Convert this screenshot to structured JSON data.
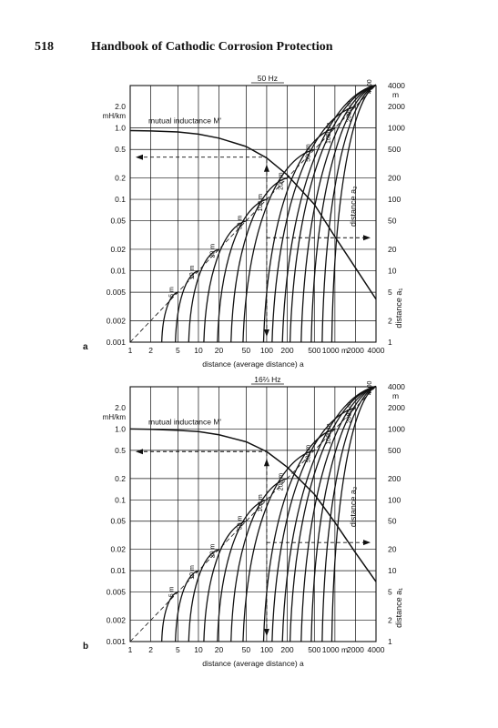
{
  "header": {
    "page_number": "518",
    "book_title": "Handbook of Cathodic Corrosion Protection"
  },
  "chart_data": [
    {
      "type": "line",
      "panel_label": "a",
      "frequency_label": "50 Hz",
      "xlabel": "distance (average distance) a",
      "y_unit": "mH/km",
      "curve_label": "mutual inductance M'",
      "right_axis_label": "distance a₁",
      "right_axis_unit": "m",
      "curve_family_axis_label": "distance a₂",
      "x_scale": "log",
      "y_scale": "log",
      "xlim": [
        1,
        4000
      ],
      "ylim": [
        0.001,
        2.0
      ],
      "x_ticks": [
        {
          "value": 1,
          "label": "1"
        },
        {
          "value": 2,
          "label": "2"
        },
        {
          "value": 5,
          "label": "5"
        },
        {
          "value": 10,
          "label": "10"
        },
        {
          "value": 20,
          "label": "20"
        },
        {
          "value": 50,
          "label": "50"
        },
        {
          "value": 100,
          "label": "100"
        },
        {
          "value": 200,
          "label": "200"
        },
        {
          "value": 500,
          "label": "500"
        },
        {
          "value": 1000,
          "label": "1000 m"
        },
        {
          "value": 2000,
          "label": "2000"
        },
        {
          "value": 4000,
          "label": "4000"
        }
      ],
      "y_ticks": [
        {
          "value": 2.0,
          "label": "2.0"
        },
        {
          "value": 1.0,
          "label": "1.0"
        },
        {
          "value": 0.5,
          "label": "0.5"
        },
        {
          "value": 0.2,
          "label": "0.2"
        },
        {
          "value": 0.1,
          "label": "0.1"
        },
        {
          "value": 0.05,
          "label": "0.05"
        },
        {
          "value": 0.02,
          "label": "0.02"
        },
        {
          "value": 0.01,
          "label": "0.01"
        },
        {
          "value": 0.005,
          "label": "0.005"
        },
        {
          "value": 0.002,
          "label": "0.002"
        },
        {
          "value": 0.001,
          "label": "0.001"
        }
      ],
      "right_ticks": [
        {
          "value": 1.0,
          "label": "1000"
        },
        {
          "value": 0.5,
          "label": "500"
        },
        {
          "value": 0.2,
          "label": "200"
        },
        {
          "value": 0.1,
          "label": "100"
        },
        {
          "value": 0.05,
          "label": "50"
        },
        {
          "value": 0.02,
          "label": "20"
        },
        {
          "value": 0.01,
          "label": "10"
        },
        {
          "value": 0.005,
          "label": "5"
        },
        {
          "value": 0.002,
          "label": "2"
        },
        {
          "value": 0.001,
          "label": "1"
        }
      ],
      "extra_right_labels": [
        {
          "value": 2.0,
          "label": "2000"
        },
        {
          "value": 4.0,
          "label": "4000"
        }
      ],
      "mutual_inductance_curve": [
        {
          "x": 1,
          "y": 0.92
        },
        {
          "x": 2,
          "y": 0.91
        },
        {
          "x": 5,
          "y": 0.88
        },
        {
          "x": 10,
          "y": 0.82
        },
        {
          "x": 20,
          "y": 0.72
        },
        {
          "x": 50,
          "y": 0.55
        },
        {
          "x": 100,
          "y": 0.38
        },
        {
          "x": 200,
          "y": 0.22
        },
        {
          "x": 500,
          "y": 0.085
        },
        {
          "x": 1000,
          "y": 0.03
        },
        {
          "x": 2000,
          "y": 0.011
        },
        {
          "x": 4000,
          "y": 0.004
        }
      ],
      "a2_labels": [
        "5 m",
        "10 m",
        "20 m",
        "50 m",
        "100 m",
        "200 m",
        "500 m",
        "1000 m",
        "2000 m",
        "4000"
      ],
      "a2_values": [
        5,
        10,
        20,
        50,
        100,
        200,
        500,
        1000,
        2000,
        4000
      ],
      "a1_curve_starts": [
        2.9,
        4.6,
        7.2,
        12,
        19,
        30,
        45,
        90,
        120,
        170,
        220,
        320,
        450,
        650,
        900
      ],
      "example": {
        "x": 100,
        "y1": 0.029,
        "y2": 0.39
      }
    },
    {
      "type": "line",
      "panel_label": "b",
      "frequency_label": "16⅔ Hz",
      "xlabel": "distance (average distance) a",
      "y_unit": "mH/km",
      "curve_label": "mutual inductance M'",
      "right_axis_label": "distance a₁",
      "right_axis_unit": "m",
      "curve_family_axis_label": "distance a₂",
      "x_scale": "log",
      "y_scale": "log",
      "xlim": [
        1,
        4000
      ],
      "ylim": [
        0.001,
        2.0
      ],
      "x_ticks": [
        {
          "value": 1,
          "label": "1"
        },
        {
          "value": 2,
          "label": "2"
        },
        {
          "value": 5,
          "label": "5"
        },
        {
          "value": 10,
          "label": "10"
        },
        {
          "value": 20,
          "label": "20"
        },
        {
          "value": 50,
          "label": "50"
        },
        {
          "value": 100,
          "label": "100"
        },
        {
          "value": 200,
          "label": "200"
        },
        {
          "value": 500,
          "label": "500"
        },
        {
          "value": 1000,
          "label": "1000 m"
        },
        {
          "value": 2000,
          "label": "2000"
        },
        {
          "value": 4000,
          "label": "4000"
        }
      ],
      "y_ticks": [
        {
          "value": 2.0,
          "label": "2.0"
        },
        {
          "value": 1.0,
          "label": "1.0"
        },
        {
          "value": 0.5,
          "label": "0.5"
        },
        {
          "value": 0.2,
          "label": "0.2"
        },
        {
          "value": 0.1,
          "label": "0.1"
        },
        {
          "value": 0.05,
          "label": "0.05"
        },
        {
          "value": 0.02,
          "label": "0.02"
        },
        {
          "value": 0.01,
          "label": "0.01"
        },
        {
          "value": 0.005,
          "label": "0.005"
        },
        {
          "value": 0.002,
          "label": "0.002"
        },
        {
          "value": 0.001,
          "label": "0.001"
        }
      ],
      "right_ticks": [
        {
          "value": 1.0,
          "label": "1000"
        },
        {
          "value": 0.5,
          "label": "500"
        },
        {
          "value": 0.2,
          "label": "200"
        },
        {
          "value": 0.1,
          "label": "100"
        },
        {
          "value": 0.05,
          "label": "50"
        },
        {
          "value": 0.02,
          "label": "20"
        },
        {
          "value": 0.01,
          "label": "10"
        },
        {
          "value": 0.005,
          "label": "5"
        },
        {
          "value": 0.002,
          "label": "2"
        },
        {
          "value": 0.001,
          "label": "1"
        }
      ],
      "extra_right_labels": [
        {
          "value": 2.0,
          "label": "2000"
        },
        {
          "value": 4.0,
          "label": "4000"
        }
      ],
      "mutual_inductance_curve": [
        {
          "x": 1,
          "y": 1.0
        },
        {
          "x": 2,
          "y": 0.99
        },
        {
          "x": 5,
          "y": 0.96
        },
        {
          "x": 10,
          "y": 0.92
        },
        {
          "x": 20,
          "y": 0.83
        },
        {
          "x": 50,
          "y": 0.66
        },
        {
          "x": 100,
          "y": 0.48
        },
        {
          "x": 200,
          "y": 0.29
        },
        {
          "x": 500,
          "y": 0.12
        },
        {
          "x": 1000,
          "y": 0.048
        },
        {
          "x": 2000,
          "y": 0.018
        },
        {
          "x": 4000,
          "y": 0.007
        }
      ],
      "a2_labels": [
        "5 m",
        "10 m",
        "20 m",
        "50 m",
        "100 m",
        "200 m",
        "500 m",
        "1000 m",
        "2000 m",
        "4000"
      ],
      "a2_values": [
        5,
        10,
        20,
        50,
        100,
        200,
        500,
        1000,
        2000,
        4000
      ],
      "a1_curve_starts": [
        2.9,
        4.6,
        7.2,
        12,
        19,
        30,
        45,
        90,
        120,
        170,
        220,
        320,
        450,
        650,
        900
      ],
      "example": {
        "x": 100,
        "y1": 0.025,
        "y2": 0.48
      }
    }
  ]
}
